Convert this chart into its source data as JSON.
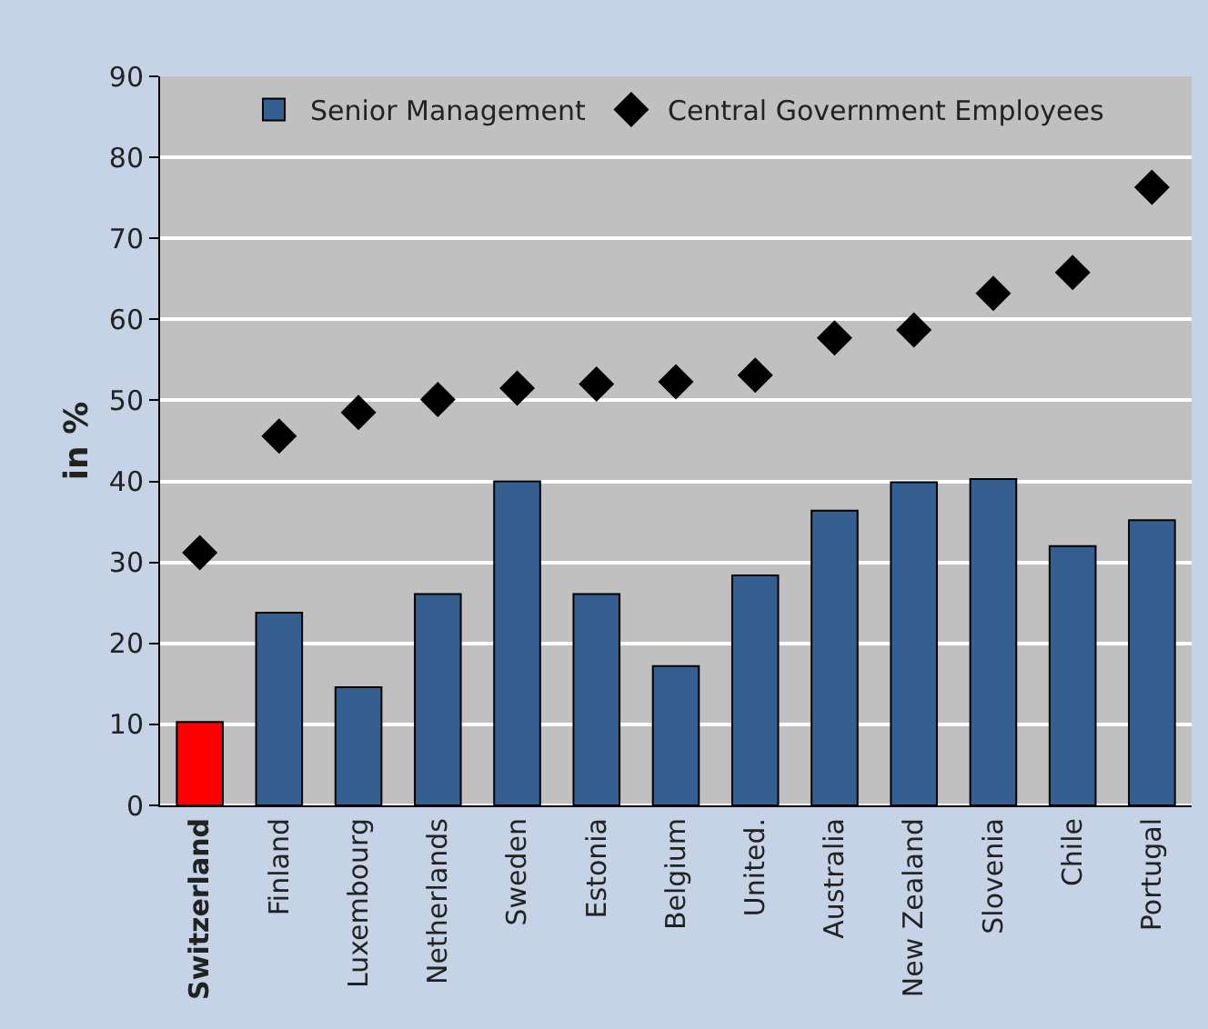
{
  "chart_data": {
    "type": "bar",
    "ylabel": "in %",
    "categories": [
      "Switzerland",
      "Finland",
      "Luxembourg",
      "Netherlands",
      "Sweden",
      "Estonia",
      "Belgium",
      "United.",
      "Australia",
      "New Zealand",
      "Slovenia",
      "Chile",
      "Portugal"
    ],
    "series": [
      {
        "name": "Senior Management",
        "color": "#355f91",
        "colors": [
          "#ff0000",
          "#355f91",
          "#355f91",
          "#355f91",
          "#355f91",
          "#355f91",
          "#355f91",
          "#355f91",
          "#355f91",
          "#355f91",
          "#355f91",
          "#355f91",
          "#355f91"
        ],
        "values": [
          10.3,
          23.8,
          14.6,
          26.1,
          40.0,
          26.1,
          17.2,
          28.4,
          36.4,
          39.9,
          40.3,
          32.0,
          35.2
        ]
      },
      {
        "name": "Central Government Employees",
        "type": "scatter",
        "color": "#000000",
        "marker": "diamond",
        "values": [
          31.2,
          45.6,
          48.5,
          50.1,
          51.5,
          52.0,
          52.3,
          53.1,
          57.7,
          58.7,
          63.2,
          65.8,
          76.3
        ]
      }
    ],
    "ylim": [
      0,
      90
    ],
    "yticks": [
      0,
      10,
      20,
      30,
      40,
      50,
      60,
      70,
      80,
      90
    ],
    "grid": "y",
    "legend": "top"
  }
}
